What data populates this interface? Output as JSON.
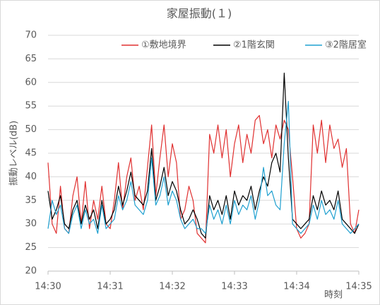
{
  "chart_data": {
    "type": "line",
    "title": "家屋振動(１)",
    "y_label": "振動レベル(dB)",
    "x_label": "時刻",
    "x": [
      0,
      4,
      8,
      12,
      16,
      20,
      24,
      28,
      32,
      36,
      40,
      44,
      48,
      52,
      56,
      60,
      64,
      68,
      72,
      76,
      80,
      84,
      88,
      92,
      96,
      100,
      104,
      108,
      112,
      116,
      120,
      124,
      128,
      132,
      136,
      140,
      144,
      148,
      152,
      156,
      160,
      164,
      168,
      172,
      176,
      180,
      184,
      188,
      192,
      196,
      200,
      204,
      208,
      212,
      216,
      220,
      224,
      228,
      232,
      236,
      240,
      244,
      248,
      252,
      256,
      260,
      264,
      268,
      272,
      276,
      280,
      284,
      288,
      292,
      296,
      300
    ],
    "series": [
      {
        "name": "①敷地境界",
        "color": "#e03030",
        "values": [
          43,
          30,
          28,
          38,
          29,
          28,
          36,
          40,
          30,
          39,
          29,
          35,
          31,
          38,
          30,
          29,
          35,
          43,
          33,
          40,
          44,
          35,
          38,
          33,
          42,
          51,
          36,
          44,
          51,
          40,
          47,
          43,
          31,
          33,
          38,
          35,
          28,
          27,
          26,
          49,
          45,
          51,
          44,
          50,
          40,
          47,
          51,
          43,
          49,
          45,
          52,
          53,
          47,
          50,
          44,
          51,
          48,
          52,
          50,
          40,
          29,
          27,
          28,
          30,
          51,
          45,
          52,
          43,
          51,
          46,
          48,
          42,
          46,
          30,
          28,
          33
        ]
      },
      {
        "name": "②1階玄関",
        "color": "#000000",
        "values": [
          37,
          31,
          33,
          36,
          30,
          29,
          33,
          35,
          30,
          34,
          31,
          33,
          29,
          35,
          30,
          31,
          33,
          38,
          34,
          37,
          41,
          36,
          35,
          34,
          37,
          46,
          35,
          38,
          42,
          36,
          39,
          37,
          33,
          30,
          31,
          33,
          31,
          28,
          27,
          36,
          33,
          35,
          32,
          36,
          31,
          37,
          34,
          36,
          35,
          38,
          33,
          37,
          40,
          38,
          43,
          45,
          41,
          62,
          44,
          31,
          30,
          29,
          30,
          31,
          36,
          33,
          37,
          34,
          35,
          33,
          37,
          31,
          30,
          29,
          28,
          30
        ]
      },
      {
        "name": "③2階居室",
        "color": "#1fa0d0",
        "values": [
          29,
          35,
          32,
          34,
          29,
          28,
          32,
          34,
          29,
          33,
          30,
          31,
          28,
          34,
          29,
          30,
          31,
          36,
          33,
          35,
          39,
          34,
          33,
          32,
          35,
          44,
          34,
          36,
          40,
          34,
          37,
          35,
          31,
          29,
          30,
          31,
          29,
          29,
          28,
          34,
          31,
          33,
          30,
          34,
          30,
          35,
          32,
          34,
          33,
          36,
          31,
          35,
          42,
          36,
          37,
          34,
          33,
          47,
          56,
          30,
          29,
          28,
          29,
          30,
          34,
          31,
          35,
          32,
          33,
          31,
          35,
          30,
          29,
          28,
          29,
          30
        ]
      }
    ],
    "xlim": [
      0,
      300
    ],
    "xticks": [
      {
        "value": 0,
        "label": "14:30"
      },
      {
        "value": 60,
        "label": "14:31"
      },
      {
        "value": 120,
        "label": "14:32"
      },
      {
        "value": 180,
        "label": "14:33"
      },
      {
        "value": 240,
        "label": "14:34"
      },
      {
        "value": 300,
        "label": "14:35"
      }
    ],
    "ylim": [
      20,
      70
    ],
    "yticks": [
      20,
      25,
      30,
      35,
      40,
      45,
      50,
      55,
      60,
      65,
      70
    ],
    "grid": true,
    "legend": "top-right"
  }
}
